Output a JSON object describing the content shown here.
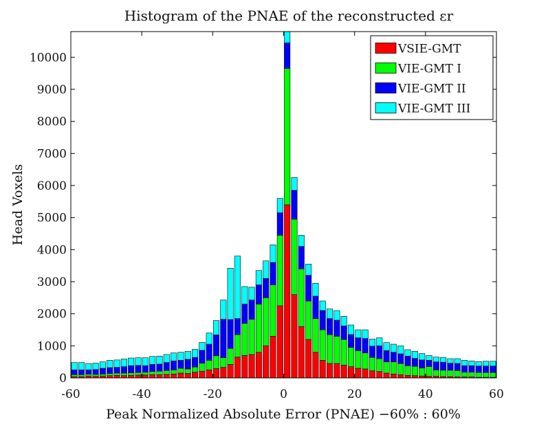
{
  "chart_data": {
    "type": "bar",
    "stacked": true,
    "title": "Histogram of the PNAE of the reconstructed εr",
    "xlabel": "Peak Normalized Absolute Error (PNAE) −60% : 60%",
    "ylabel": "Head Voxels",
    "xlim": [
      -60,
      60
    ],
    "ylim": [
      0,
      10800
    ],
    "xticks": [
      -60,
      -40,
      -20,
      0,
      20,
      40,
      60
    ],
    "yticks": [
      0,
      1000,
      2000,
      3000,
      4000,
      5000,
      6000,
      7000,
      8000,
      9000,
      10000
    ],
    "legend_position": "top-right",
    "bin_width": 2,
    "x": [
      -59,
      -57,
      -55,
      -53,
      -51,
      -49,
      -47,
      -45,
      -43,
      -41,
      -39,
      -37,
      -35,
      -33,
      -31,
      -29,
      -27,
      -25,
      -23,
      -21,
      -19,
      -17,
      -15,
      -13,
      -11,
      -9,
      -7,
      -5,
      -3,
      -1,
      1,
      3,
      5,
      7,
      9,
      11,
      13,
      15,
      17,
      19,
      21,
      23,
      25,
      27,
      29,
      31,
      33,
      35,
      37,
      39,
      41,
      43,
      45,
      47,
      49,
      51,
      53,
      55,
      57,
      59
    ],
    "series": [
      {
        "name": "VSIE-GMT",
        "color": "#ff0000",
        "values": [
          40,
          40,
          60,
          50,
          60,
          70,
          80,
          70,
          80,
          90,
          90,
          100,
          100,
          110,
          120,
          150,
          140,
          180,
          210,
          250,
          290,
          330,
          420,
          650,
          700,
          730,
          800,
          1000,
          1300,
          2250,
          5400,
          2600,
          1600,
          1200,
          800,
          550,
          450,
          450,
          400,
          350,
          300,
          280,
          220,
          200,
          150,
          120,
          100,
          80,
          70,
          60,
          50,
          50,
          40,
          40,
          30,
          30,
          30,
          20,
          20,
          20
        ]
      },
      {
        "name": "VIE-GMT I",
        "color": "#00ff00",
        "values": [
          60,
          60,
          60,
          60,
          60,
          70,
          70,
          80,
          80,
          80,
          90,
          100,
          110,
          120,
          130,
          150,
          140,
          160,
          250,
          300,
          400,
          300,
          500,
          700,
          1000,
          1100,
          1500,
          1500,
          1600,
          2200,
          4250,
          2350,
          1800,
          1200,
          1050,
          950,
          900,
          850,
          800,
          600,
          550,
          500,
          420,
          400,
          350,
          380,
          350,
          300,
          290,
          250,
          300,
          200,
          200,
          200,
          200,
          150,
          150,
          150,
          150,
          150
        ]
      },
      {
        "name": "VIE-GMT II",
        "color": "#0000ff",
        "values": [
          150,
          150,
          130,
          150,
          180,
          180,
          180,
          200,
          220,
          220,
          200,
          220,
          220,
          250,
          280,
          250,
          300,
          300,
          400,
          500,
          650,
          1200,
          900,
          500,
          600,
          600,
          600,
          600,
          700,
          700,
          800,
          900,
          700,
          800,
          700,
          600,
          500,
          500,
          420,
          400,
          400,
          450,
          350,
          400,
          350,
          300,
          300,
          300,
          250,
          250,
          200,
          250,
          250,
          220,
          220,
          200,
          200,
          200,
          200,
          200
        ]
      },
      {
        "name": "VIE-GMT III",
        "color": "#00ffff",
        "values": [
          230,
          230,
          200,
          200,
          200,
          230,
          230,
          240,
          240,
          240,
          250,
          250,
          250,
          250,
          250,
          250,
          250,
          250,
          250,
          350,
          450,
          600,
          1600,
          1950,
          550,
          400,
          450,
          550,
          550,
          450,
          470,
          400,
          350,
          350,
          400,
          300,
          300,
          300,
          300,
          300,
          250,
          270,
          220,
          250,
          250,
          250,
          250,
          200,
          220,
          200,
          150,
          150,
          150,
          140,
          150,
          170,
          150,
          140,
          150,
          150
        ]
      }
    ]
  }
}
